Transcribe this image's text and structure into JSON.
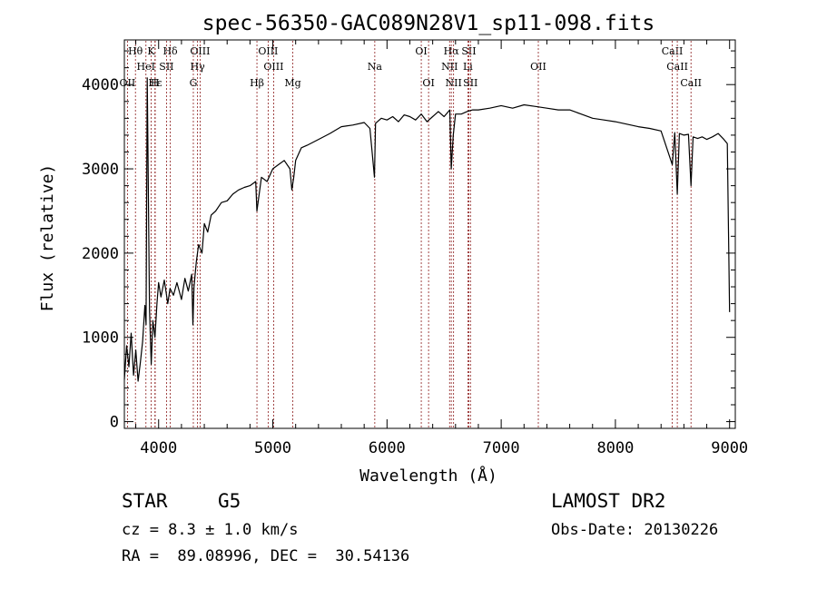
{
  "chart_data": {
    "type": "line",
    "title": "spec-56350-GAC089N28V1_sp11-098.fits",
    "xlabel": "Wavelength (Å)",
    "ylabel": "Flux (relative)",
    "xlim": [
      3700,
      9050
    ],
    "ylim": [
      -80,
      4530
    ],
    "xticks": [
      4000,
      5000,
      6000,
      7000,
      8000,
      9000
    ],
    "yticks": [
      0,
      1000,
      2000,
      3000,
      4000
    ],
    "grid": false,
    "legend": "none",
    "line_color": "#000000",
    "marker_color": "#8b1a1a",
    "series": [
      {
        "x": [
          3700,
          3720,
          3740,
          3760,
          3780,
          3800,
          3820,
          3840,
          3860,
          3880,
          3890,
          3900,
          3920,
          3935,
          3950,
          3968,
          3985,
          4000,
          4020,
          4050,
          4080,
          4100,
          4130,
          4160,
          4200,
          4230,
          4260,
          4290,
          4300,
          4310,
          4330,
          4350,
          4380,
          4400,
          4430,
          4460,
          4500,
          4550,
          4600,
          4650,
          4700,
          4750,
          4800,
          4850,
          4861,
          4900,
          4950,
          5000,
          5050,
          5100,
          5150,
          5167,
          5183,
          5200,
          5250,
          5300,
          5400,
          5500,
          5600,
          5700,
          5800,
          5850,
          5890,
          5900,
          5950,
          6000,
          6050,
          6100,
          6150,
          6200,
          6250,
          6300,
          6350,
          6400,
          6450,
          6500,
          6550,
          6563,
          6580,
          6600,
          6650,
          6700,
          6750,
          6800,
          6900,
          7000,
          7100,
          7200,
          7300,
          7400,
          7500,
          7600,
          7700,
          7800,
          7900,
          8000,
          8100,
          8200,
          8300,
          8400,
          8498,
          8520,
          8542,
          8560,
          8600,
          8640,
          8662,
          8680,
          8720,
          8760,
          8800,
          8850,
          8900,
          8950,
          8980,
          9000
        ],
        "y": [
          500,
          900,
          650,
          1050,
          550,
          850,
          480,
          700,
          950,
          1380,
          1150,
          4080,
          1330,
          680,
          1200,
          1000,
          1400,
          1650,
          1480,
          1680,
          1400,
          1580,
          1500,
          1650,
          1450,
          1700,
          1550,
          1750,
          1150,
          1600,
          1900,
          2100,
          2000,
          2350,
          2250,
          2450,
          2500,
          2600,
          2620,
          2700,
          2750,
          2780,
          2800,
          2850,
          2500,
          2900,
          2850,
          3000,
          3050,
          3100,
          3000,
          2750,
          2900,
          3100,
          3250,
          3280,
          3350,
          3420,
          3500,
          3520,
          3550,
          3480,
          2900,
          3540,
          3600,
          3580,
          3620,
          3560,
          3640,
          3620,
          3580,
          3650,
          3560,
          3620,
          3680,
          3620,
          3700,
          3000,
          3400,
          3650,
          3650,
          3680,
          3700,
          3700,
          3720,
          3750,
          3720,
          3760,
          3740,
          3720,
          3700,
          3700,
          3650,
          3600,
          3580,
          3560,
          3530,
          3500,
          3480,
          3450,
          3050,
          3430,
          2700,
          3420,
          3400,
          3410,
          2800,
          3380,
          3360,
          3380,
          3350,
          3380,
          3420,
          3350,
          3300,
          1300
        ]
      }
    ],
    "line_markers": [
      {
        "name": "Hθ",
        "wavelength": 3797,
        "row": 0
      },
      {
        "name": "K",
        "wavelength": 3934,
        "row": 0
      },
      {
        "name": "Hδ",
        "wavelength": 4102,
        "row": 0
      },
      {
        "name": "OIII",
        "wavelength": 4363,
        "row": 0
      },
      {
        "name": "OIII",
        "wavelength": 4959,
        "row": 0
      },
      {
        "name": "OI",
        "wavelength": 6300,
        "row": 0
      },
      {
        "name": "Hα",
        "wavelength": 6563,
        "row": 0
      },
      {
        "name": "SII",
        "wavelength": 6717,
        "row": 0
      },
      {
        "name": "CaII",
        "wavelength": 8498,
        "row": 0
      },
      {
        "name": "HeI",
        "wavelength": 3889,
        "row": 1
      },
      {
        "name": "SII",
        "wavelength": 4069,
        "row": 1
      },
      {
        "name": "Hγ",
        "wavelength": 4341,
        "row": 1
      },
      {
        "name": "OIII",
        "wavelength": 5007,
        "row": 1
      },
      {
        "name": "Na",
        "wavelength": 5893,
        "row": 1
      },
      {
        "name": "NII",
        "wavelength": 6548,
        "row": 1
      },
      {
        "name": "Li",
        "wavelength": 6708,
        "row": 1
      },
      {
        "name": "OII",
        "wavelength": 7325,
        "row": 1
      },
      {
        "name": "CaII",
        "wavelength": 8542,
        "row": 1
      },
      {
        "name": "OII",
        "wavelength": 3727,
        "row": 2
      },
      {
        "name": "Hε",
        "wavelength": 3970,
        "row": 2
      },
      {
        "name": "H",
        "wavelength": 3968,
        "row": 2
      },
      {
        "name": "G",
        "wavelength": 4304,
        "row": 2
      },
      {
        "name": "Hβ",
        "wavelength": 4861,
        "row": 2
      },
      {
        "name": "Mg",
        "wavelength": 5175,
        "row": 2
      },
      {
        "name": "OI",
        "wavelength": 6364,
        "row": 2
      },
      {
        "name": "NII",
        "wavelength": 6583,
        "row": 2
      },
      {
        "name": "SII",
        "wavelength": 6731,
        "row": 2
      },
      {
        "name": "CaII",
        "wavelength": 8662,
        "row": 2
      }
    ]
  },
  "info": {
    "class": "STAR",
    "subclass": "G5",
    "survey": "LAMOST DR2",
    "redshift": "cz = 8.3 ± 1.0 km/s",
    "obs_date": "Obs-Date: 20130226",
    "coords": "RA =  89.08996, DEC =  30.54136"
  }
}
